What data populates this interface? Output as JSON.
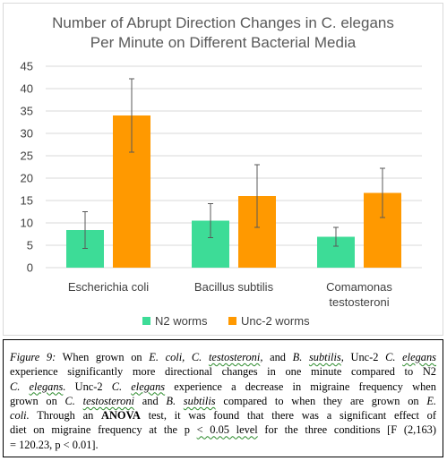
{
  "chart_data": {
    "type": "bar",
    "title_lines": [
      "Number of Abrupt Direction Changes in C. elegans",
      "Per Minute on Different Bacterial Media"
    ],
    "categories": [
      [
        "Escherichia coli"
      ],
      [
        "Bacillus subtilis"
      ],
      [
        "Comamonas",
        "testosteroni"
      ]
    ],
    "y_ticks": [
      "0",
      "5",
      "10",
      "15",
      "20",
      "25",
      "30",
      "35",
      "40",
      "45"
    ],
    "ylim": [
      0,
      45
    ],
    "grid": true,
    "legend_position": "bottom",
    "series": [
      {
        "name": "N2 worms",
        "color": "#3ddc97",
        "values": [
          8.4,
          10.5,
          6.9
        ],
        "error": [
          4.1,
          3.8,
          2.1
        ]
      },
      {
        "name": "Unc-2 worms",
        "color": "#ff9900",
        "values": [
          34.0,
          16.0,
          16.7
        ],
        "error": [
          8.2,
          7.0,
          5.5
        ]
      }
    ],
    "error_bar_color": "#595959"
  },
  "caption": {
    "lines": [
      [
        [
          "i",
          "Figure 9:"
        ],
        [
          "n",
          " When grown on "
        ],
        [
          "i",
          "E. coli, C. "
        ],
        [
          "is",
          "testosteroni"
        ],
        [
          "i",
          ","
        ],
        [
          "n",
          " and "
        ],
        [
          "i",
          "B. "
        ],
        [
          "is",
          "subtilis"
        ],
        [
          "i",
          ","
        ],
        [
          "n",
          " Unc-2 "
        ],
        [
          "i",
          "C. "
        ],
        [
          "is",
          "elegans"
        ]
      ],
      [
        [
          "n",
          "experience significantly more directional changes in one minute compared to N2"
        ]
      ],
      [
        [
          "i",
          "C. "
        ],
        [
          "is",
          "elegans"
        ],
        [
          "i",
          "."
        ],
        [
          "n",
          " Unc-2 "
        ],
        [
          "i",
          "C. "
        ],
        [
          "is",
          "elegans"
        ],
        [
          "n",
          " experience a decrease in migraine frequency when"
        ]
      ],
      [
        [
          "n",
          "grown on "
        ],
        [
          "i",
          "C. "
        ],
        [
          "is",
          "testosteroni"
        ],
        [
          "n",
          " and "
        ],
        [
          "i",
          "B. "
        ],
        [
          "is",
          "subtilis"
        ],
        [
          "n",
          " compared to when they are grown on "
        ],
        [
          "i",
          "E."
        ]
      ],
      [
        [
          "i",
          "coli."
        ],
        [
          "n",
          " Through an "
        ],
        [
          "b",
          "ANOVA"
        ],
        [
          "n",
          " test, it was found that there was a significant effect of"
        ]
      ],
      [
        [
          "n",
          "diet on migraine frequency at the p "
        ],
        [
          "s",
          "< 0.05 level"
        ],
        [
          "n",
          " for the three conditions [F (2,163)"
        ]
      ],
      [
        [
          "n",
          "= 120.23, p < 0.01]."
        ]
      ]
    ]
  }
}
